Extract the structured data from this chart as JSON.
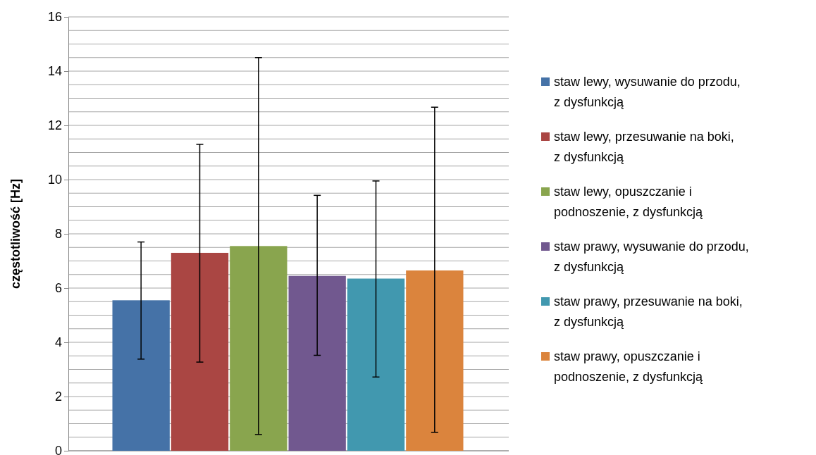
{
  "chart_data": {
    "type": "bar",
    "ylabel": "częstotliwość [Hz]",
    "categories": [
      null
    ],
    "ylim": [
      0,
      16
    ],
    "yticks": [
      0,
      {
        "value": 0.5,
        "label": null
      },
      {
        "value": 1,
        "label": null
      },
      {
        "value": 1.5,
        "label": null
      },
      2,
      {
        "value": 2.5,
        "label": null
      },
      {
        "value": 3,
        "label": null
      },
      {
        "value": 3.5,
        "label": null
      },
      4,
      {
        "value": 4.5,
        "label": null
      },
      {
        "value": 5,
        "label": null
      },
      {
        "value": 5.5,
        "label": null
      },
      6,
      {
        "value": 6.5,
        "label": null
      },
      {
        "value": 7,
        "label": null
      },
      {
        "value": 7.5,
        "label": null
      },
      8,
      {
        "value": 8.5,
        "label": null
      },
      {
        "value": 9,
        "label": null
      },
      {
        "value": 9.5,
        "label": null
      },
      10,
      {
        "value": 10.5,
        "label": null
      },
      {
        "value": 11,
        "label": null
      },
      {
        "value": 11.5,
        "label": null
      },
      12,
      {
        "value": 12.5,
        "label": null
      },
      {
        "value": 13,
        "label": null
      },
      {
        "value": 13.5,
        "label": null
      },
      14,
      {
        "value": 14.5,
        "label": null
      },
      {
        "value": 15,
        "label": null
      },
      {
        "value": 15.5,
        "label": null
      },
      16
    ],
    "grid": "y",
    "legend": "right",
    "series": [
      {
        "name": "staw lewy, wysuwanie do przodu, z dysfunkcją",
        "color": "#4572a7",
        "values": [
          5.55
        ],
        "errors": [
          [
            3.38,
            7.7
          ]
        ]
      },
      {
        "name": "staw lewy, przesuwanie na boki, z dysfunkcją",
        "color": "#aa4643",
        "values": [
          7.3
        ],
        "errors": [
          [
            3.27,
            11.3
          ]
        ]
      },
      {
        "name": "staw lewy, opuszczanie i podnoszenie, z dysfunkcją",
        "color": "#89a54e",
        "values": [
          7.55
        ],
        "errors": [
          [
            0.6,
            14.5
          ]
        ]
      },
      {
        "name": "staw prawy, wysuwanie do przodu, z dysfunkcją",
        "color": "#71588f",
        "values": [
          6.45
        ],
        "errors": [
          [
            3.52,
            9.42
          ]
        ]
      },
      {
        "name": "staw prawy, przesuwanie na boki, z dysfunkcją",
        "color": "#4198af",
        "values": [
          6.35
        ],
        "errors": [
          [
            2.72,
            9.95
          ]
        ]
      },
      {
        "name": "staw prawy, opuszczanie i podnoszenie, z dysfunkcją",
        "color": "#db843d",
        "values": [
          6.65
        ],
        "errors": [
          [
            0.68,
            12.67
          ]
        ]
      }
    ]
  }
}
